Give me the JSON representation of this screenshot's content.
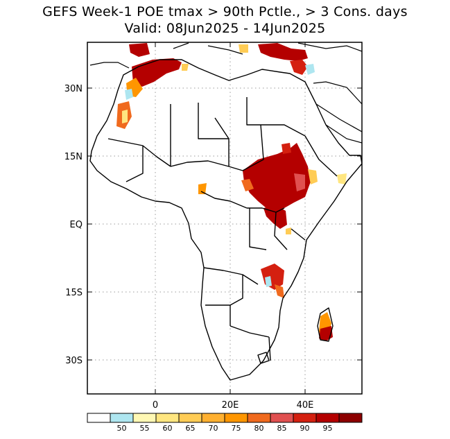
{
  "title": {
    "line1": "GEFS Week-1 POE tmax > 90th Pctle., > 3 Cons. days",
    "line2": "Valid: 08Jun2025 - 14Jun2025"
  },
  "map": {
    "region": "Africa",
    "lat_labels": [
      "30N",
      "15N",
      "EQ",
      "15S",
      "30S"
    ],
    "lon_labels": [
      "0",
      "20E",
      "40E"
    ],
    "grid": true
  },
  "colorbar": {
    "colors": [
      "#ffffff",
      "#aee6f0",
      "#fff8b4",
      "#ffe680",
      "#ffcc55",
      "#ffb030",
      "#ff9600",
      "#f06a1e",
      "#e05050",
      "#d42010",
      "#b40000",
      "#8c0000"
    ],
    "labels": [
      "50",
      "55",
      "60",
      "65",
      "70",
      "75",
      "80",
      "85",
      "90",
      "95"
    ]
  }
}
